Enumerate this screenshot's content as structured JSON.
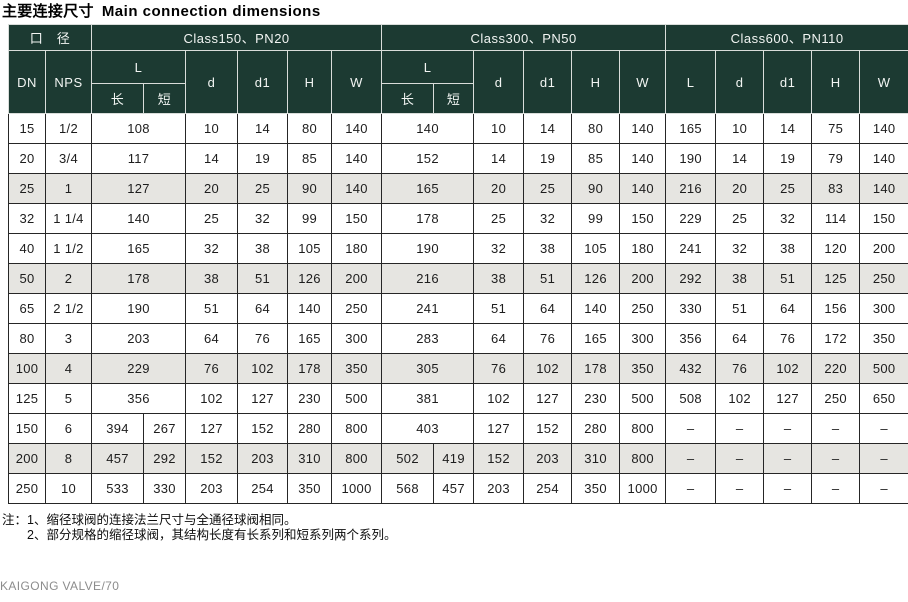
{
  "title": {
    "zh": "主要连接尺寸",
    "en": "Main connection dimensions"
  },
  "table": {
    "header": {
      "diameter": "口　径",
      "class150": "Class150、PN20",
      "class300": "Class300、PN50",
      "class600": "Class600、PN110",
      "dn": "DN",
      "nps": "NPS",
      "l": "L",
      "d": "d",
      "d1": "d1",
      "h": "H",
      "w": "W",
      "long": "长",
      "short": "短"
    },
    "rows": [
      {
        "dn": "15",
        "nps": "1/2",
        "c150": [
          "108",
          null,
          "10",
          "14",
          "80",
          "140"
        ],
        "c300": [
          "140",
          null,
          "10",
          "14",
          "80",
          "140"
        ],
        "c600": [
          "165",
          "10",
          "14",
          "75",
          "140"
        ],
        "shaded": false
      },
      {
        "dn": "20",
        "nps": "3/4",
        "c150": [
          "117",
          null,
          "14",
          "19",
          "85",
          "140"
        ],
        "c300": [
          "152",
          null,
          "14",
          "19",
          "85",
          "140"
        ],
        "c600": [
          "190",
          "14",
          "19",
          "79",
          "140"
        ],
        "shaded": false
      },
      {
        "dn": "25",
        "nps": "1",
        "c150": [
          "127",
          null,
          "20",
          "25",
          "90",
          "140"
        ],
        "c300": [
          "165",
          null,
          "20",
          "25",
          "90",
          "140"
        ],
        "c600": [
          "216",
          "20",
          "25",
          "83",
          "140"
        ],
        "shaded": true
      },
      {
        "dn": "32",
        "nps": "1 1/4",
        "c150": [
          "140",
          null,
          "25",
          "32",
          "99",
          "150"
        ],
        "c300": [
          "178",
          null,
          "25",
          "32",
          "99",
          "150"
        ],
        "c600": [
          "229",
          "25",
          "32",
          "114",
          "150"
        ],
        "shaded": false
      },
      {
        "dn": "40",
        "nps": "1 1/2",
        "c150": [
          "165",
          null,
          "32",
          "38",
          "105",
          "180"
        ],
        "c300": [
          "190",
          null,
          "32",
          "38",
          "105",
          "180"
        ],
        "c600": [
          "241",
          "32",
          "38",
          "120",
          "200"
        ],
        "shaded": false
      },
      {
        "dn": "50",
        "nps": "2",
        "c150": [
          "178",
          null,
          "38",
          "51",
          "126",
          "200"
        ],
        "c300": [
          "216",
          null,
          "38",
          "51",
          "126",
          "200"
        ],
        "c600": [
          "292",
          "38",
          "51",
          "125",
          "250"
        ],
        "shaded": true
      },
      {
        "dn": "65",
        "nps": "2 1/2",
        "c150": [
          "190",
          null,
          "51",
          "64",
          "140",
          "250"
        ],
        "c300": [
          "241",
          null,
          "51",
          "64",
          "140",
          "250"
        ],
        "c600": [
          "330",
          "51",
          "64",
          "156",
          "300"
        ],
        "shaded": false
      },
      {
        "dn": "80",
        "nps": "3",
        "c150": [
          "203",
          null,
          "64",
          "76",
          "165",
          "300"
        ],
        "c300": [
          "283",
          null,
          "64",
          "76",
          "165",
          "300"
        ],
        "c600": [
          "356",
          "64",
          "76",
          "172",
          "350"
        ],
        "shaded": false
      },
      {
        "dn": "100",
        "nps": "4",
        "c150": [
          "229",
          null,
          "76",
          "102",
          "178",
          "350"
        ],
        "c300": [
          "305",
          null,
          "76",
          "102",
          "178",
          "350"
        ],
        "c600": [
          "432",
          "76",
          "102",
          "220",
          "500"
        ],
        "shaded": true
      },
      {
        "dn": "125",
        "nps": "5",
        "c150": [
          "356",
          null,
          "102",
          "127",
          "230",
          "500"
        ],
        "c300": [
          "381",
          null,
          "102",
          "127",
          "230",
          "500"
        ],
        "c600": [
          "508",
          "102",
          "127",
          "250",
          "650"
        ],
        "shaded": false
      },
      {
        "dn": "150",
        "nps": "6",
        "c150": [
          "394",
          "267",
          "127",
          "152",
          "280",
          "800"
        ],
        "c300": [
          "403",
          null,
          "127",
          "152",
          "280",
          "800"
        ],
        "c600": [
          "–",
          "–",
          "–",
          "–",
          "–"
        ],
        "shaded": false
      },
      {
        "dn": "200",
        "nps": "8",
        "c150": [
          "457",
          "292",
          "152",
          "203",
          "310",
          "800"
        ],
        "c300": [
          "502",
          "419",
          "152",
          "203",
          "310",
          "800"
        ],
        "c600": [
          "–",
          "–",
          "–",
          "–",
          "–"
        ],
        "shaded": true
      },
      {
        "dn": "250",
        "nps": "10",
        "c150": [
          "533",
          "330",
          "203",
          "254",
          "350",
          "1000"
        ],
        "c300": [
          "568",
          "457",
          "203",
          "254",
          "350",
          "1000"
        ],
        "c600": [
          "–",
          "–",
          "–",
          "–",
          "–"
        ],
        "shaded": false
      }
    ]
  },
  "notes": {
    "prefix": "注：",
    "lines": [
      "1、缩径球阀的连接法兰尺寸与全通径球阀相同。",
      "2、部分规格的缩径球阀，其结构长度有长系列和短系列两个系列。"
    ]
  },
  "footer": "KAIGONG VALVE/70",
  "colors": {
    "header_bg": "#1c3a32",
    "header_line": "#d9ddda",
    "border_dark": "#262626",
    "row_shaded": "#e6e5e1"
  }
}
